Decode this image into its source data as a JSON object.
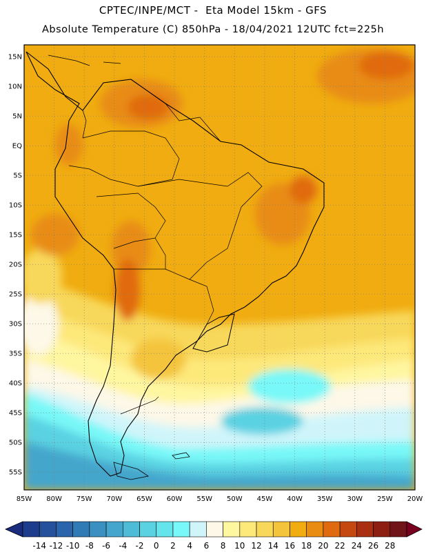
{
  "header": {
    "line1": "CPTEC/INPE/MCT -  Eta Model 15km - GFS",
    "line2": "Absolute Temperature (C) 850hPa - 18/04/2021 12UTC fct=225h"
  },
  "map": {
    "variable": "Absolute Temperature (C)",
    "level": "850hPa",
    "lon_range": [
      -85,
      -20
    ],
    "lat_range": [
      -58,
      17
    ],
    "grid": true,
    "lat_labels": [
      "15N",
      "10N",
      "5N",
      "EQ",
      "5S",
      "10S",
      "15S",
      "20S",
      "25S",
      "30S",
      "35S",
      "40S",
      "45S",
      "50S",
      "55S"
    ],
    "lat_values": [
      15,
      10,
      5,
      0,
      -5,
      -10,
      -15,
      -20,
      -25,
      -30,
      -35,
      -40,
      -45,
      -50,
      -55
    ],
    "lon_labels": [
      "85W",
      "80W",
      "75W",
      "70W",
      "65W",
      "60W",
      "55W",
      "50W",
      "45W",
      "40W",
      "35W",
      "30W",
      "25W",
      "20W"
    ],
    "lon_values": [
      -85,
      -80,
      -75,
      -70,
      -65,
      -60,
      -55,
      -50,
      -45,
      -40,
      -35,
      -30,
      -25,
      -20
    ]
  },
  "colorbar": {
    "labels": [
      "-14",
      "-12",
      "-10",
      "-8",
      "-6",
      "-4",
      "-2",
      "0",
      "2",
      "4",
      "6",
      "8",
      "10",
      "12",
      "14",
      "16",
      "18",
      "20",
      "22",
      "24",
      "26",
      "28"
    ],
    "colors": [
      "#1e3c8c",
      "#24509c",
      "#2a64aa",
      "#307ab6",
      "#3a90c0",
      "#44a6cc",
      "#4ebcd6",
      "#5ad2e2",
      "#66e4ec",
      "#78f8f8",
      "#cff5fa",
      "#fdf8e8",
      "#fff6a0",
      "#fde87a",
      "#f8d85a",
      "#f4c43c",
      "#f0ac10",
      "#e88c14",
      "#e06a10",
      "#c44810",
      "#a83010",
      "#8c1e12",
      "#70141a"
    ],
    "low_arrow_color": "#1a2a7c",
    "high_arrow_color": "#78001e"
  }
}
